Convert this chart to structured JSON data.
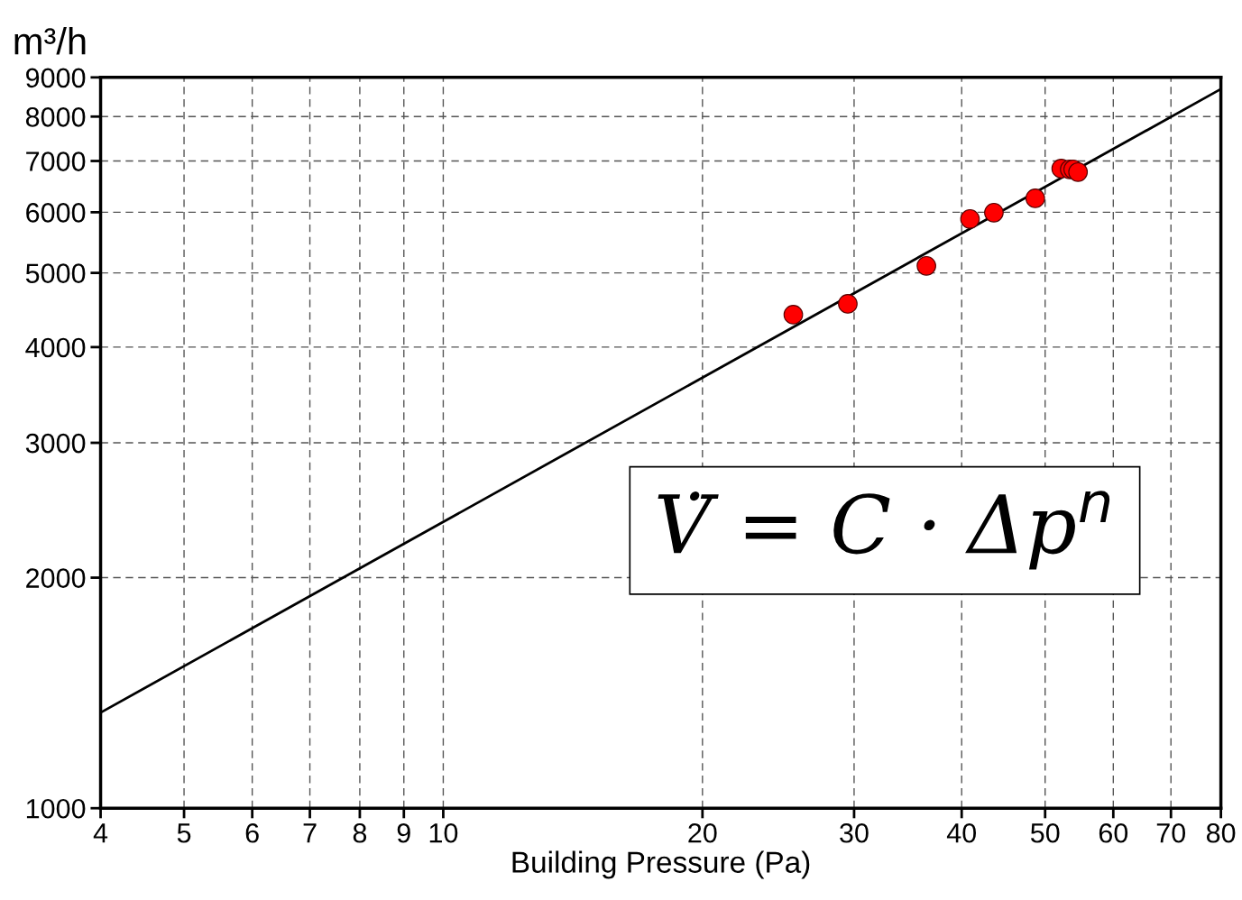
{
  "chart_data": {
    "type": "scatter",
    "xlabel": "Building Pressure (Pa)",
    "ylabel": "m³/h",
    "log": "xy",
    "grid": true,
    "marker": "circle",
    "xlim": [
      4,
      80
    ],
    "xticks": [
      4,
      5,
      6,
      7,
      8,
      9,
      10,
      20,
      30,
      40,
      50,
      60,
      70,
      80
    ],
    "ylim": [
      1000,
      9000
    ],
    "yticks": [
      1000,
      2000,
      3000,
      4000,
      5000,
      6000,
      7000,
      8000,
      9000
    ],
    "series": [
      {
        "type": "line",
        "marker": "none",
        "color": "#000000",
        "x": [
          4,
          80
        ],
        "values": [
          1333,
          8690
        ]
      },
      {
        "color": "#ff0000",
        "x": [
          25.5,
          29.5,
          36.4,
          40.9,
          43.6,
          48.7,
          52.2,
          53.4,
          53.9,
          54.6
        ],
        "values": [
          4410,
          4556,
          5107,
          5880,
          5993,
          6257,
          6843,
          6826,
          6826,
          6771
        ]
      }
    ],
    "annotations": [
      "V̇ = C · Δp$^{n}$"
    ]
  }
}
